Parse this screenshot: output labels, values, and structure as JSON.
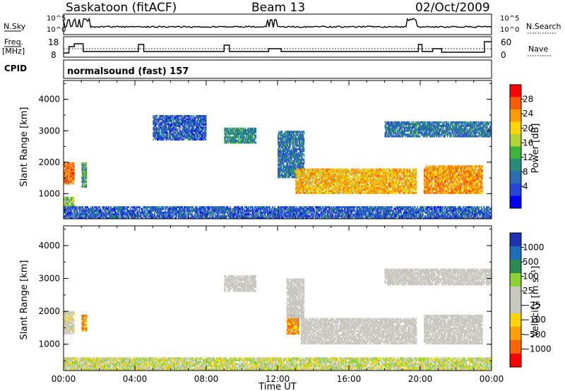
{
  "header": {
    "title": "Saskatoon (fitACF)",
    "beam": "Beam 13",
    "date": "02/Oct/2009"
  },
  "status_panels": {
    "nsky_label": "N.Sky",
    "nsky_ticks": [
      "10^5",
      "10^0"
    ],
    "nsearch_label": "N.Search",
    "nsearch_ticks": [
      "10^5",
      "10^0"
    ],
    "freq_label": "Freq.",
    "freq_unit": "[MHz]",
    "freq_ticks": [
      "18",
      "8"
    ],
    "nave_label": "Nave",
    "nave_ticks": [
      "60",
      "0"
    ],
    "cpid_label": "CPID",
    "cpid_value": "normalsound (fast) 157"
  },
  "chart_data": [
    {
      "type": "heatmap",
      "name": "power-panel",
      "ylabel": "Slant Range [km]",
      "yticks": [
        "4000",
        "3000",
        "2000",
        "1000"
      ],
      "ylim": [
        200,
        4600
      ],
      "xlim_hours": [
        0,
        24
      ],
      "xticks": [
        "00:00",
        "04:00",
        "08:00",
        "12:00",
        "16:00",
        "20:00",
        "00:00"
      ],
      "colorbar": {
        "label": "Power [dB]",
        "ticks": [
          "28",
          "24",
          "20",
          "16",
          "12",
          "8",
          "4"
        ],
        "colors": [
          "#ff0000",
          "#ff5a00",
          "#ff9a00",
          "#ffd400",
          "#b4d232",
          "#3cb43c",
          "#288c78",
          "#286eb4",
          "#2846dc",
          "#0000ff"
        ]
      },
      "regions": [
        {
          "t0": 0.0,
          "t1": 0.6,
          "r0": 1300,
          "r1": 2000,
          "value": 26
        },
        {
          "t0": 0.0,
          "t1": 0.6,
          "r0": 600,
          "r1": 900,
          "value": 16
        },
        {
          "t0": 1.0,
          "t1": 1.3,
          "r0": 1200,
          "r1": 2000,
          "value": 12
        },
        {
          "t0": 5.0,
          "t1": 8.0,
          "r0": 2700,
          "r1": 3500,
          "value": 6
        },
        {
          "t0": 9.0,
          "t1": 10.8,
          "r0": 2600,
          "r1": 3100,
          "value": 10
        },
        {
          "t0": 12.0,
          "t1": 13.5,
          "r0": 1500,
          "r1": 3000,
          "value": 8
        },
        {
          "t0": 13.0,
          "t1": 19.8,
          "r0": 1000,
          "r1": 1800,
          "value": 22
        },
        {
          "t0": 20.2,
          "t1": 23.5,
          "r0": 1000,
          "r1": 1900,
          "value": 24
        },
        {
          "t0": 18.0,
          "t1": 24.0,
          "r0": 2800,
          "r1": 3300,
          "value": 8
        },
        {
          "t0": 0.0,
          "t1": 24.0,
          "r0": 200,
          "r1": 600,
          "value": 6
        }
      ]
    },
    {
      "type": "heatmap",
      "name": "velocity-panel",
      "ylabel": "Slant Range [km]",
      "yticks": [
        "4000",
        "3000",
        "2000",
        "1000"
      ],
      "ylim": [
        200,
        4600
      ],
      "xlim_hours": [
        0,
        24
      ],
      "xticks": [
        "00:00",
        "04:00",
        "08:00",
        "12:00",
        "16:00",
        "20:00",
        "00:00"
      ],
      "xlabel": "Time UT",
      "colorbar": {
        "label": "Velocity [m s⁻¹]",
        "ticks": [
          "1000",
          "500",
          "100",
          "25",
          "−25",
          "−100",
          "−500",
          "−1000"
        ],
        "colors": [
          "#1e32b4",
          "#1e6ebe",
          "#288c50",
          "#8cd232",
          "#c8c8c0",
          "#c8c8c0",
          "#ffd400",
          "#ffa000",
          "#ff6400",
          "#ff0000"
        ]
      },
      "regions": [
        {
          "t0": 0.0,
          "t1": 0.6,
          "r0": 1300,
          "r1": 2000,
          "value": 25
        },
        {
          "t0": 1.0,
          "t1": 1.3,
          "r0": 1400,
          "r1": 1900,
          "value": -300
        },
        {
          "t0": 12.5,
          "t1": 13.2,
          "r0": 1300,
          "r1": 1900,
          "value": -300
        },
        {
          "t0": 12.5,
          "t1": 13.5,
          "r0": 1800,
          "r1": 3000,
          "value": 0
        },
        {
          "t0": 13.3,
          "t1": 19.8,
          "r0": 1000,
          "r1": 1800,
          "value": 0
        },
        {
          "t0": 20.2,
          "t1": 23.5,
          "r0": 1000,
          "r1": 1900,
          "value": 0
        },
        {
          "t0": 9.0,
          "t1": 10.8,
          "r0": 2600,
          "r1": 3100,
          "value": 0
        },
        {
          "t0": 18.0,
          "t1": 24.0,
          "r0": 2800,
          "r1": 3300,
          "value": 0
        },
        {
          "t0": 0.0,
          "t1": 24.0,
          "r0": 200,
          "r1": 600,
          "value": 50
        }
      ]
    }
  ]
}
